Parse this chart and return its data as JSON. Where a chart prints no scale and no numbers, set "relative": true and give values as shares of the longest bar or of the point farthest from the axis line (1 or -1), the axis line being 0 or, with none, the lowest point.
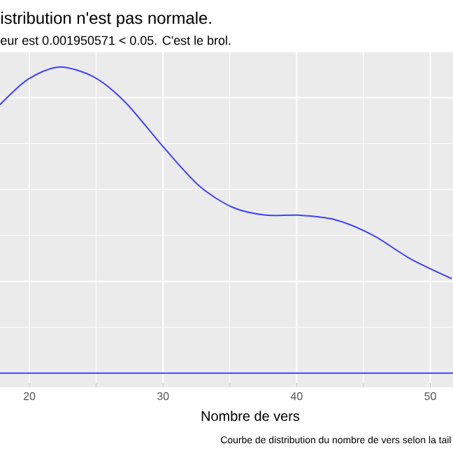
{
  "chart_data": {
    "type": "line",
    "title": "istribution n'est pas normale.",
    "subtitle": "eur est  0.001950571  < 0.05. C'est le brol.",
    "xlabel": "Nombre de vers",
    "annotations": [
      "Courbe de distribution du nombre de vers selon la tail"
    ],
    "relative": true,
    "xlim": [
      17.8,
      51.7
    ],
    "xticks": [
      20,
      30,
      40,
      50
    ],
    "grid": true,
    "series": [
      {
        "color": "#4040ff",
        "x": [
          17.8,
          19.9,
          22.2,
          24.8,
          27.2,
          30.0,
          32.7,
          35.2,
          37.7,
          40.1,
          42.9,
          45.7,
          48.5,
          51.6
        ],
        "values": [
          0.877,
          0.96,
          1.0,
          0.968,
          0.884,
          0.74,
          0.612,
          0.542,
          0.516,
          0.516,
          0.501,
          0.451,
          0.374,
          0.309
        ]
      }
    ]
  }
}
